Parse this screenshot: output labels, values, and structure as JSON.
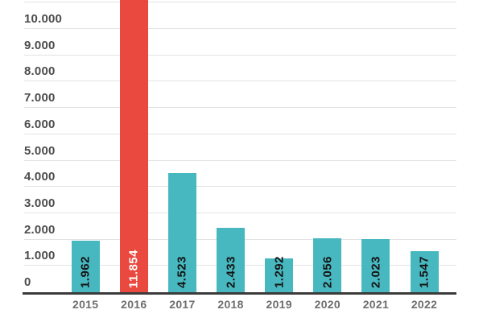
{
  "chart_data": {
    "type": "bar",
    "categories": [
      "2015",
      "2016",
      "2017",
      "2018",
      "2019",
      "2020",
      "2021",
      "2022"
    ],
    "values": [
      1962,
      11854,
      4523,
      2433,
      1292,
      2056,
      2023,
      1547
    ],
    "value_labels": [
      "1.962",
      "11.854",
      "4.523",
      "2.433",
      "1.292",
      "2.056",
      "2.023",
      "1.547"
    ],
    "highlighted_category": "2016",
    "highlight_index": 1,
    "y_tick_labels": [
      "0",
      "1.000",
      "2.000",
      "3.000",
      "4.000",
      "5.000",
      "6.000",
      "7.000",
      "8.000",
      "9.000",
      "10.000"
    ],
    "y_tick_values": [
      0,
      1000,
      2000,
      3000,
      4000,
      5000,
      6000,
      7000,
      8000,
      9000,
      10000
    ],
    "unlabeled_top_gridline_value": 11000,
    "ylim": [
      0,
      11100
    ],
    "grid": true,
    "title": "",
    "xlabel": "",
    "ylabel": "",
    "legend_position": "none",
    "value_label_rotation_degrees": 90,
    "colors": {
      "bar_default": "#48B8C0",
      "bar_highlight": "#E9493E",
      "value_label_default": "#151515",
      "value_label_highlight": "#FFFFFF",
      "gridline": "#E3E3E3",
      "axis_line": "#3B3B3B",
      "y_tick_label": "#4C4C4C",
      "x_tick_label": "#6E6E6E",
      "background": "#FFFFFF"
    }
  }
}
